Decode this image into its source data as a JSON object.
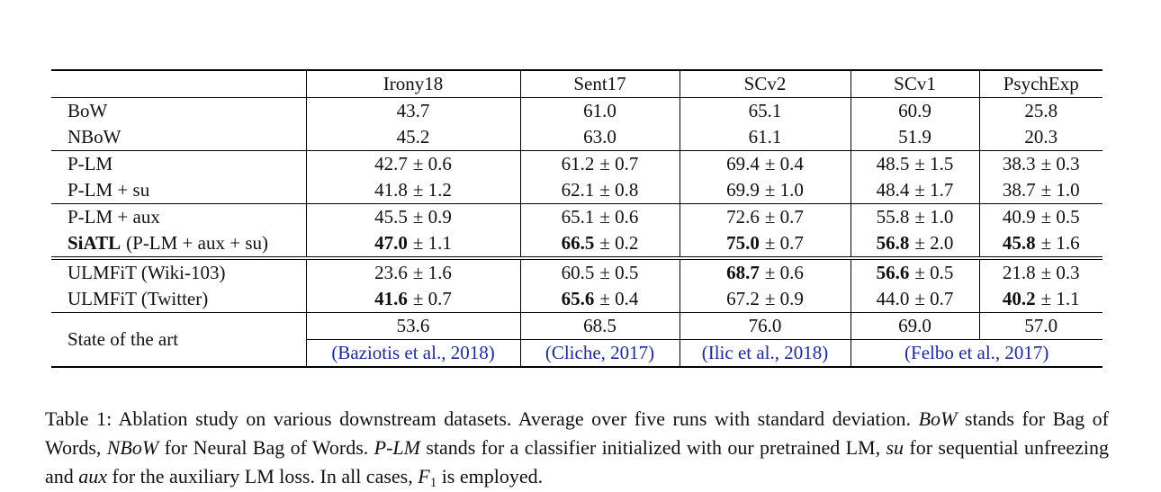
{
  "table": {
    "header": [
      "Irony18",
      "Sent17",
      "SCv2",
      "SCv1",
      "PsychExp"
    ],
    "groups": [
      [
        {
          "label": [
            {
              "text": "BoW"
            }
          ],
          "cells": [
            {
              "value": "43.7"
            },
            {
              "value": "61.0"
            },
            {
              "value": "65.1"
            },
            {
              "value": "60.9"
            },
            {
              "value": "25.8"
            }
          ]
        },
        {
          "label": [
            {
              "text": "NBoW"
            }
          ],
          "cells": [
            {
              "value": "45.2"
            },
            {
              "value": "63.0"
            },
            {
              "value": "61.1"
            },
            {
              "value": "51.9"
            },
            {
              "value": "20.3"
            }
          ]
        }
      ],
      [
        {
          "label": [
            {
              "text": "P-LM"
            }
          ],
          "cells": [
            {
              "value": "42.7",
              "error": "± 0.6"
            },
            {
              "value": "61.2",
              "error": "± 0.7"
            },
            {
              "value": "69.4",
              "error": "± 0.4"
            },
            {
              "value": "48.5",
              "error": "± 1.5"
            },
            {
              "value": "38.3",
              "error": "± 0.3"
            }
          ]
        },
        {
          "label": [
            {
              "text": "P-LM + su"
            }
          ],
          "cells": [
            {
              "value": "41.8",
              "error": "± 1.2"
            },
            {
              "value": "62.1",
              "error": "± 0.8"
            },
            {
              "value": "69.9",
              "error": "± 1.0"
            },
            {
              "value": "48.4",
              "error": "± 1.7"
            },
            {
              "value": "38.7",
              "error": "± 1.0"
            }
          ]
        }
      ],
      [
        {
          "label": [
            {
              "text": "P-LM + aux"
            }
          ],
          "cells": [
            {
              "value": "45.5",
              "error": "± 0.9"
            },
            {
              "value": "65.1",
              "error": "± 0.6"
            },
            {
              "value": "72.6",
              "error": "± 0.7"
            },
            {
              "value": "55.8",
              "error": "± 1.0"
            },
            {
              "value": "40.9",
              "error": "± 0.5"
            }
          ]
        },
        {
          "label": [
            {
              "text": "SiATL",
              "bold": true
            },
            {
              "text": "(P-LM + aux + su)"
            }
          ],
          "cells": [
            {
              "value": "47.0",
              "error": "± 1.1",
              "bold": true
            },
            {
              "value": "66.5",
              "error": "± 0.2",
              "bold": true
            },
            {
              "value": "75.0",
              "error": "± 0.7",
              "bold": true
            },
            {
              "value": "56.8",
              "error": "± 2.0",
              "bold": true
            },
            {
              "value": "45.8",
              "error": "± 1.6",
              "bold": true
            }
          ]
        }
      ],
      [
        {
          "label": [
            {
              "text": "ULMFiT (Wiki-103)"
            }
          ],
          "cells": [
            {
              "value": "23.6",
              "error": "± 1.6"
            },
            {
              "value": "60.5",
              "error": "± 0.5"
            },
            {
              "value": "68.7",
              "error": "± 0.6",
              "bold": true
            },
            {
              "value": "56.6",
              "error": "± 0.5",
              "bold": true
            },
            {
              "value": "21.8",
              "error": "± 0.3"
            }
          ]
        },
        {
          "label": [
            {
              "text": "ULMFiT (Twitter)"
            }
          ],
          "cells": [
            {
              "value": "41.6",
              "error": "± 0.7",
              "bold": true
            },
            {
              "value": "65.6",
              "error": "± 0.4",
              "bold": true
            },
            {
              "value": "67.2",
              "error": "± 0.9"
            },
            {
              "value": "44.0",
              "error": "± 0.7"
            },
            {
              "value": "40.2",
              "error": "± 1.1",
              "bold": true
            }
          ]
        }
      ]
    ],
    "state_of_the_art": {
      "label": "State of the art",
      "values": [
        "53.6",
        "68.5",
        "76.0",
        "69.0",
        "57.0"
      ],
      "citations": [
        {
          "text": "(Baziotis et al., 2018)",
          "span": 1
        },
        {
          "text": "(Cliche, 2017)",
          "span": 1
        },
        {
          "text": "(Ilic et al., 2018)",
          "span": 1
        },
        {
          "text": "(Felbo et al., 2017)",
          "span": 2
        }
      ]
    }
  },
  "caption": [
    {
      "text": "Table 1: Ablation study on various downstream datasets. Average over five runs with standard deviation. "
    },
    {
      "text": "BoW",
      "style": "italic"
    },
    {
      "text": " stands for Bag of Words, "
    },
    {
      "text": "NBoW",
      "style": "italic"
    },
    {
      "text": " for Neural Bag of Words. "
    },
    {
      "text": "P-LM",
      "style": "italic"
    },
    {
      "text": " stands for a classifier initialized with our pretrained LM, "
    },
    {
      "text": "su",
      "style": "italic"
    },
    {
      "text": " for sequential unfreezing and "
    },
    {
      "text": "aux",
      "style": "italic"
    },
    {
      "text": " for the auxiliary LM loss. In all cases, "
    },
    {
      "text": "F",
      "style": "italic"
    },
    {
      "text": "1",
      "style": "sub"
    },
    {
      "text": " is employed."
    }
  ]
}
